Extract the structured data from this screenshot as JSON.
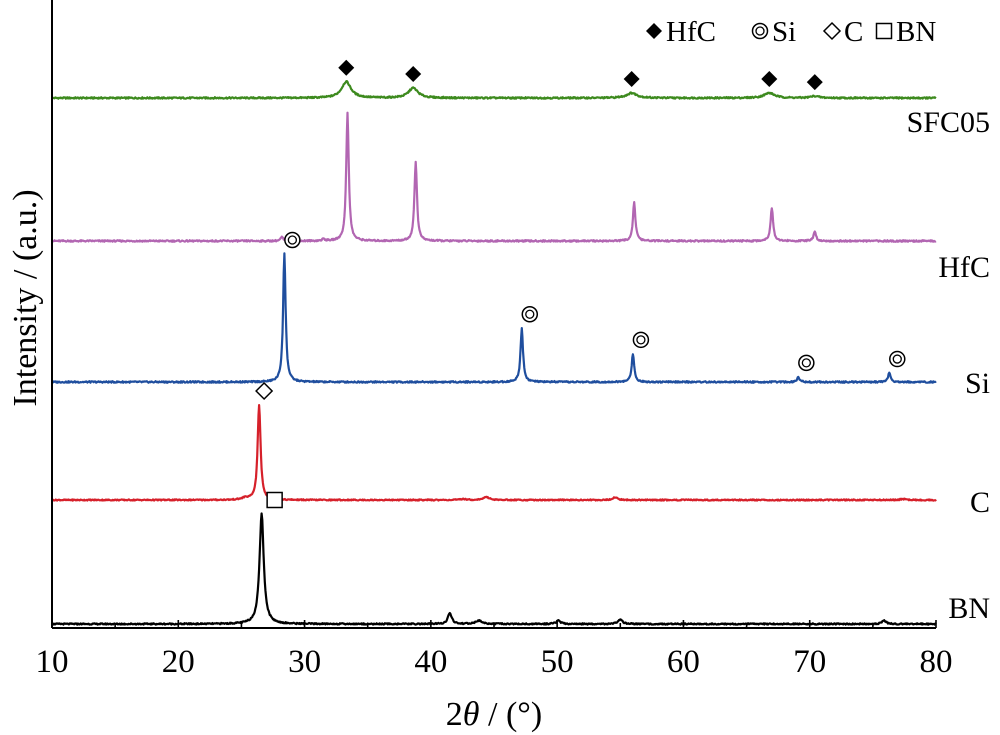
{
  "chart_data": {
    "type": "line",
    "xlabel_prefix": "2",
    "xlabel_theta": "θ",
    "xlabel_suffix": " / (°)",
    "ylabel": "Intensity / (a.u.)",
    "xlim": [
      10,
      80
    ],
    "xticks": [
      "10",
      "20",
      "30",
      "40",
      "50",
      "60",
      "70",
      "80"
    ],
    "grid": false,
    "legend_position": "top-right",
    "legend": [
      {
        "symbol": "filled-diamond",
        "label": "HfC"
      },
      {
        "symbol": "double-circle",
        "label": "Si"
      },
      {
        "symbol": "open-diamond",
        "label": "C"
      },
      {
        "symbol": "open-square",
        "label": "BN"
      }
    ],
    "series": [
      {
        "name": "SFC05",
        "color": "#3d8a1e",
        "baseline_offset": 4,
        "peaks": [
          {
            "x": 33.3,
            "height": 0.13,
            "width": 0.45,
            "marker": "filled-diamond"
          },
          {
            "x": 38.6,
            "height": 0.08,
            "width": 0.45,
            "marker": "filled-diamond"
          },
          {
            "x": 55.9,
            "height": 0.04,
            "width": 0.5,
            "marker": "filled-diamond"
          },
          {
            "x": 66.8,
            "height": 0.04,
            "width": 0.5,
            "marker": "filled-diamond"
          },
          {
            "x": 70.4,
            "height": 0.015,
            "width": 0.4,
            "marker": "filled-diamond"
          }
        ]
      },
      {
        "name": "HfC",
        "color": "#b266b2",
        "baseline_offset": 3,
        "peaks": [
          {
            "x": 28.2,
            "height": 0.03,
            "width": 0.12
          },
          {
            "x": 31.5,
            "height": 0.015,
            "width": 0.12
          },
          {
            "x": 33.4,
            "height": 1.0,
            "width": 0.12
          },
          {
            "x": 38.8,
            "height": 0.62,
            "width": 0.12
          },
          {
            "x": 56.1,
            "height": 0.3,
            "width": 0.12
          },
          {
            "x": 67.0,
            "height": 0.26,
            "width": 0.12
          },
          {
            "x": 70.4,
            "height": 0.07,
            "width": 0.12
          }
        ]
      },
      {
        "name": "Si",
        "color": "#1f4e9e",
        "baseline_offset": 2,
        "peaks": [
          {
            "x": 28.4,
            "height": 1.0,
            "width": 0.12,
            "marker": "double-circle"
          },
          {
            "x": 47.2,
            "height": 0.42,
            "width": 0.12,
            "marker": "double-circle"
          },
          {
            "x": 56.0,
            "height": 0.22,
            "width": 0.12,
            "marker": "double-circle"
          },
          {
            "x": 69.1,
            "height": 0.04,
            "width": 0.12,
            "marker": "double-circle"
          },
          {
            "x": 76.3,
            "height": 0.07,
            "width": 0.12,
            "marker": "double-circle"
          }
        ]
      },
      {
        "name": "C",
        "color": "#d6202a",
        "baseline_offset": 1,
        "peaks": [
          {
            "x": 26.4,
            "height": 1.0,
            "width": 0.14,
            "marker": "open-diamond"
          },
          {
            "x": 25.3,
            "height": 0.02,
            "width": 0.3
          },
          {
            "x": 42.6,
            "height": 0.01,
            "width": 0.3
          },
          {
            "x": 44.4,
            "height": 0.03,
            "width": 0.3
          },
          {
            "x": 54.6,
            "height": 0.03,
            "width": 0.2
          },
          {
            "x": 77.4,
            "height": 0.01,
            "width": 0.3
          }
        ]
      },
      {
        "name": "BN",
        "color": "#000000",
        "baseline_offset": 0,
        "peaks": [
          {
            "x": 26.6,
            "height": 1.0,
            "width": 0.2,
            "marker": "open-square"
          },
          {
            "x": 41.5,
            "height": 0.1,
            "width": 0.18
          },
          {
            "x": 43.8,
            "height": 0.03,
            "width": 0.3
          },
          {
            "x": 50.1,
            "height": 0.03,
            "width": 0.2
          },
          {
            "x": 55.0,
            "height": 0.04,
            "width": 0.2
          },
          {
            "x": 75.9,
            "height": 0.03,
            "width": 0.2
          }
        ]
      }
    ]
  }
}
